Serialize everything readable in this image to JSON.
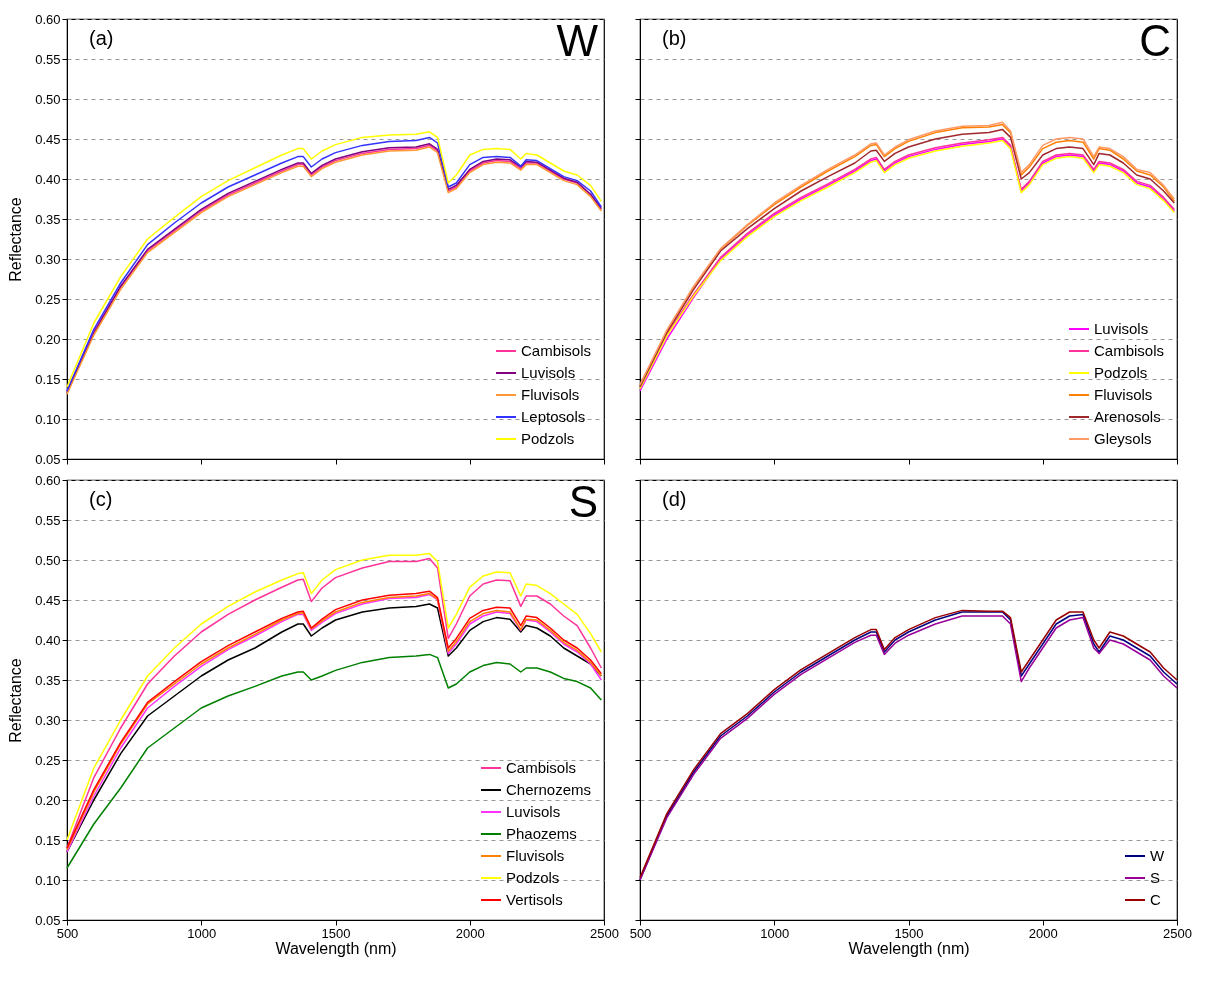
{
  "chart_data": [
    {
      "type": "line",
      "annotations": [
        "(a)",
        "W"
      ],
      "ylabel": "Reflectance",
      "xlim": [
        500,
        2500
      ],
      "ylim": [
        0.05,
        0.6
      ],
      "xticks": [
        500,
        1000,
        1500,
        2000,
        2500
      ],
      "yticks": [
        0.05,
        {
          "value": 0.1,
          "label": "0.10"
        },
        0.15,
        {
          "value": 0.2,
          "label": "0.20"
        },
        0.25,
        {
          "value": 0.3,
          "label": "0.30"
        },
        0.35,
        {
          "value": 0.4,
          "label": "0.40"
        },
        0.45,
        {
          "value": 0.5,
          "label": "0.50"
        },
        0.55,
        {
          "value": 0.6,
          "label": "0.60"
        }
      ],
      "tick_labels": "y",
      "grid": "y",
      "legend": "bottom right",
      "x": [
        500,
        600,
        700,
        800,
        900,
        1000,
        1100,
        1200,
        1300,
        1360,
        1380,
        1410,
        1450,
        1500,
        1600,
        1700,
        1800,
        1850,
        1880,
        1920,
        1950,
        2000,
        2050,
        2100,
        2150,
        2190,
        2210,
        2250,
        2300,
        2350,
        2400,
        2450,
        2490
      ],
      "series": [
        {
          "name": "Cambisols",
          "color": "#ff3399",
          "values": [
            0.135,
            0.21,
            0.265,
            0.31,
            0.335,
            0.36,
            0.38,
            0.395,
            0.41,
            0.418,
            0.418,
            0.405,
            0.415,
            0.423,
            0.432,
            0.437,
            0.438,
            0.442,
            0.435,
            0.385,
            0.39,
            0.41,
            0.42,
            0.423,
            0.422,
            0.413,
            0.42,
            0.42,
            0.41,
            0.4,
            0.395,
            0.38,
            0.362
          ]
        },
        {
          "name": "Luvisols",
          "color": "#800080",
          "values": [
            0.133,
            0.207,
            0.266,
            0.312,
            0.337,
            0.362,
            0.382,
            0.397,
            0.412,
            0.42,
            0.42,
            0.407,
            0.417,
            0.425,
            0.434,
            0.439,
            0.44,
            0.444,
            0.437,
            0.387,
            0.392,
            0.412,
            0.422,
            0.425,
            0.424,
            0.415,
            0.422,
            0.421,
            0.411,
            0.401,
            0.396,
            0.381,
            0.363
          ]
        },
        {
          "name": "Fluvisols",
          "color": "#ff9933",
          "values": [
            0.131,
            0.205,
            0.262,
            0.308,
            0.333,
            0.358,
            0.378,
            0.393,
            0.408,
            0.416,
            0.416,
            0.403,
            0.413,
            0.421,
            0.43,
            0.435,
            0.436,
            0.44,
            0.433,
            0.383,
            0.388,
            0.408,
            0.418,
            0.421,
            0.42,
            0.411,
            0.418,
            0.418,
            0.408,
            0.398,
            0.393,
            0.378,
            0.36
          ]
        },
        {
          "name": "Leptosols",
          "color": "#3333ff",
          "values": [
            0.135,
            0.212,
            0.27,
            0.318,
            0.345,
            0.37,
            0.39,
            0.405,
            0.42,
            0.428,
            0.428,
            0.415,
            0.425,
            0.433,
            0.442,
            0.447,
            0.448,
            0.452,
            0.445,
            0.39,
            0.395,
            0.418,
            0.427,
            0.428,
            0.427,
            0.416,
            0.424,
            0.423,
            0.413,
            0.403,
            0.398,
            0.385,
            0.365
          ]
        },
        {
          "name": "Podzols",
          "color": "#ffff00",
          "values": [
            0.14,
            0.22,
            0.278,
            0.325,
            0.352,
            0.378,
            0.398,
            0.414,
            0.43,
            0.438,
            0.438,
            0.425,
            0.435,
            0.443,
            0.452,
            0.455,
            0.456,
            0.459,
            0.452,
            0.395,
            0.405,
            0.43,
            0.437,
            0.438,
            0.437,
            0.425,
            0.432,
            0.43,
            0.42,
            0.41,
            0.405,
            0.392,
            0.372
          ]
        }
      ]
    },
    {
      "type": "line",
      "annotations": [
        "(b)",
        "C"
      ],
      "xlim": [
        500,
        2500
      ],
      "ylim": [
        0.05,
        0.6
      ],
      "xticks": [
        500,
        1000,
        1500,
        2000,
        2500
      ],
      "yticks": [
        0.05,
        0.1,
        0.15,
        0.2,
        0.25,
        0.3,
        0.35,
        0.4,
        0.45,
        0.5,
        0.55,
        0.6
      ],
      "tick_labels": false,
      "grid": "y",
      "legend": "bottom right",
      "x": [
        500,
        600,
        700,
        800,
        900,
        1000,
        1100,
        1200,
        1300,
        1360,
        1380,
        1410,
        1450,
        1500,
        1600,
        1700,
        1800,
        1850,
        1880,
        1920,
        1950,
        2000,
        2050,
        2100,
        2150,
        2190,
        2210,
        2250,
        2300,
        2350,
        2400,
        2450,
        2490
      ],
      "series": [
        {
          "name": "Luvisols",
          "color": "#ff00ff",
          "values": [
            0.135,
            0.2,
            0.252,
            0.3,
            0.33,
            0.355,
            0.375,
            0.392,
            0.41,
            0.423,
            0.425,
            0.41,
            0.42,
            0.428,
            0.437,
            0.443,
            0.447,
            0.45,
            0.44,
            0.385,
            0.395,
            0.42,
            0.428,
            0.43,
            0.428,
            0.41,
            0.42,
            0.418,
            0.41,
            0.395,
            0.39,
            0.375,
            0.36
          ]
        },
        {
          "name": "Cambisols",
          "color": "#ff3399",
          "values": [
            0.14,
            0.206,
            0.256,
            0.302,
            0.332,
            0.357,
            0.377,
            0.394,
            0.412,
            0.425,
            0.427,
            0.412,
            0.422,
            0.43,
            0.439,
            0.445,
            0.449,
            0.452,
            0.442,
            0.387,
            0.397,
            0.422,
            0.43,
            0.432,
            0.43,
            0.412,
            0.422,
            0.42,
            0.412,
            0.397,
            0.392,
            0.377,
            0.362
          ]
        },
        {
          "name": "Podzols",
          "color": "#ffff00",
          "values": [
            0.138,
            0.204,
            0.254,
            0.298,
            0.328,
            0.353,
            0.373,
            0.39,
            0.408,
            0.421,
            0.423,
            0.408,
            0.418,
            0.426,
            0.435,
            0.441,
            0.445,
            0.448,
            0.438,
            0.383,
            0.393,
            0.418,
            0.426,
            0.428,
            0.426,
            0.408,
            0.418,
            0.416,
            0.408,
            0.393,
            0.388,
            0.373,
            0.358
          ]
        },
        {
          "name": "Fluvisols",
          "color": "#ff8000",
          "values": [
            0.142,
            0.21,
            0.265,
            0.312,
            0.342,
            0.368,
            0.39,
            0.41,
            0.428,
            0.442,
            0.443,
            0.428,
            0.438,
            0.447,
            0.458,
            0.464,
            0.465,
            0.468,
            0.458,
            0.405,
            0.415,
            0.438,
            0.446,
            0.448,
            0.446,
            0.425,
            0.438,
            0.436,
            0.425,
            0.41,
            0.405,
            0.39,
            0.372
          ]
        },
        {
          "name": "Arenosols",
          "color": "#a0282d",
          "values": [
            0.14,
            0.208,
            0.262,
            0.31,
            0.338,
            0.363,
            0.385,
            0.403,
            0.42,
            0.435,
            0.436,
            0.422,
            0.432,
            0.44,
            0.45,
            0.456,
            0.458,
            0.462,
            0.452,
            0.4,
            0.408,
            0.43,
            0.438,
            0.44,
            0.438,
            0.418,
            0.432,
            0.43,
            0.42,
            0.405,
            0.4,
            0.385,
            0.37
          ]
        },
        {
          "name": "Gleysols",
          "color": "#ff9966",
          "values": [
            0.143,
            0.211,
            0.266,
            0.313,
            0.343,
            0.37,
            0.392,
            0.412,
            0.43,
            0.444,
            0.445,
            0.43,
            0.44,
            0.449,
            0.46,
            0.466,
            0.467,
            0.471,
            0.46,
            0.408,
            0.418,
            0.442,
            0.45,
            0.452,
            0.45,
            0.428,
            0.44,
            0.438,
            0.428,
            0.412,
            0.408,
            0.392,
            0.375
          ]
        }
      ]
    },
    {
      "type": "line",
      "annotations": [
        "(c)",
        "S"
      ],
      "xlabel": "Wavelength (nm)",
      "ylabel": "Reflectance",
      "xlim": [
        500,
        2500
      ],
      "ylim": [
        0.05,
        0.6
      ],
      "xticks": [
        500,
        1000,
        1500,
        2000,
        2500
      ],
      "yticks": [
        0.05,
        {
          "value": 0.1,
          "label": "0.10"
        },
        0.15,
        {
          "value": 0.2,
          "label": "0.20"
        },
        0.25,
        {
          "value": 0.3,
          "label": "0.30"
        },
        0.35,
        {
          "value": 0.4,
          "label": "0.40"
        },
        0.45,
        {
          "value": 0.5,
          "label": "0.50"
        },
        0.55,
        {
          "value": 0.6,
          "label": "0.60"
        }
      ],
      "grid": "y",
      "legend": "bottom right",
      "x": [
        500,
        600,
        700,
        800,
        900,
        1000,
        1100,
        1200,
        1300,
        1360,
        1380,
        1410,
        1450,
        1500,
        1600,
        1700,
        1800,
        1850,
        1880,
        1920,
        1950,
        2000,
        2050,
        2100,
        2150,
        2190,
        2210,
        2250,
        2300,
        2350,
        2400,
        2450,
        2490
      ],
      "series": [
        {
          "name": "Cambisols",
          "color": "#ff3399",
          "values": [
            0.14,
            0.228,
            0.29,
            0.345,
            0.38,
            0.41,
            0.432,
            0.45,
            0.466,
            0.475,
            0.476,
            0.448,
            0.465,
            0.478,
            0.49,
            0.498,
            0.498,
            0.502,
            0.49,
            0.402,
            0.42,
            0.455,
            0.47,
            0.475,
            0.474,
            0.442,
            0.455,
            0.455,
            0.445,
            0.43,
            0.418,
            0.39,
            0.365
          ]
        },
        {
          "name": "Chernozems",
          "color": "#000000",
          "values": [
            0.135,
            0.2,
            0.258,
            0.305,
            0.33,
            0.355,
            0.375,
            0.39,
            0.41,
            0.42,
            0.42,
            0.405,
            0.415,
            0.425,
            0.435,
            0.44,
            0.442,
            0.445,
            0.44,
            0.38,
            0.39,
            0.412,
            0.423,
            0.428,
            0.426,
            0.41,
            0.418,
            0.415,
            0.405,
            0.39,
            0.38,
            0.37,
            0.355
          ]
        },
        {
          "name": "Luvisols",
          "color": "#ff33ff",
          "values": [
            0.135,
            0.205,
            0.265,
            0.315,
            0.342,
            0.367,
            0.388,
            0.405,
            0.423,
            0.432,
            0.432,
            0.412,
            0.422,
            0.433,
            0.445,
            0.452,
            0.453,
            0.457,
            0.45,
            0.383,
            0.395,
            0.42,
            0.43,
            0.435,
            0.433,
            0.412,
            0.425,
            0.423,
            0.41,
            0.395,
            0.385,
            0.37,
            0.35
          ]
        },
        {
          "name": "Phaozems",
          "color": "#008000",
          "values": [
            0.115,
            0.17,
            0.215,
            0.265,
            0.29,
            0.315,
            0.33,
            0.342,
            0.355,
            0.36,
            0.36,
            0.35,
            0.355,
            0.362,
            0.372,
            0.378,
            0.38,
            0.382,
            0.378,
            0.34,
            0.345,
            0.36,
            0.368,
            0.372,
            0.37,
            0.36,
            0.365,
            0.365,
            0.36,
            0.352,
            0.348,
            0.34,
            0.325
          ]
        },
        {
          "name": "Fluvisols",
          "color": "#ff8000",
          "values": [
            0.138,
            0.21,
            0.27,
            0.32,
            0.345,
            0.37,
            0.39,
            0.407,
            0.425,
            0.433,
            0.434,
            0.414,
            0.424,
            0.435,
            0.447,
            0.453,
            0.455,
            0.458,
            0.451,
            0.386,
            0.398,
            0.423,
            0.433,
            0.437,
            0.435,
            0.413,
            0.426,
            0.425,
            0.412,
            0.397,
            0.387,
            0.372,
            0.355
          ]
        },
        {
          "name": "Podzols",
          "color": "#ffff00",
          "values": [
            0.15,
            0.24,
            0.3,
            0.355,
            0.39,
            0.42,
            0.442,
            0.46,
            0.475,
            0.483,
            0.484,
            0.458,
            0.475,
            0.488,
            0.5,
            0.506,
            0.506,
            0.508,
            0.498,
            0.415,
            0.432,
            0.466,
            0.48,
            0.485,
            0.484,
            0.455,
            0.47,
            0.468,
            0.458,
            0.445,
            0.432,
            0.408,
            0.385
          ]
        },
        {
          "name": "Vertisols",
          "color": "#ff0000",
          "values": [
            0.14,
            0.213,
            0.272,
            0.322,
            0.348,
            0.373,
            0.393,
            0.41,
            0.427,
            0.435,
            0.436,
            0.415,
            0.426,
            0.438,
            0.45,
            0.456,
            0.458,
            0.461,
            0.453,
            0.39,
            0.402,
            0.427,
            0.437,
            0.441,
            0.44,
            0.418,
            0.43,
            0.428,
            0.415,
            0.4,
            0.39,
            0.375,
            0.358
          ]
        }
      ]
    },
    {
      "type": "line",
      "annotations": [
        "(d)"
      ],
      "xlabel": "Wavelength (nm)",
      "xlim": [
        500,
        2500
      ],
      "ylim": [
        0.05,
        0.6
      ],
      "xticks": [
        500,
        1000,
        1500,
        2000,
        2500
      ],
      "yticks": [
        0.05,
        0.1,
        0.15,
        0.2,
        0.25,
        0.3,
        0.35,
        0.4,
        0.45,
        0.5,
        0.55,
        0.6
      ],
      "tick_labels": "x",
      "grid": "y",
      "legend": "bottom right",
      "x": [
        500,
        600,
        700,
        800,
        900,
        1000,
        1100,
        1200,
        1300,
        1360,
        1380,
        1410,
        1450,
        1500,
        1600,
        1700,
        1800,
        1850,
        1880,
        1920,
        1950,
        2000,
        2050,
        2100,
        2150,
        2190,
        2210,
        2250,
        2300,
        2350,
        2400,
        2450,
        2500
      ],
      "series": [
        {
          "name": "W",
          "color": "#000080",
          "values": [
            0.1,
            0.18,
            0.235,
            0.28,
            0.305,
            0.335,
            0.36,
            0.38,
            0.4,
            0.41,
            0.41,
            0.385,
            0.4,
            0.41,
            0.425,
            0.435,
            0.435,
            0.435,
            0.425,
            0.355,
            0.37,
            0.395,
            0.42,
            0.43,
            0.432,
            0.395,
            0.385,
            0.405,
            0.4,
            0.39,
            0.38,
            0.36,
            0.345
          ]
        },
        {
          "name": "S",
          "color": "#990099",
          "values": [
            0.1,
            0.178,
            0.232,
            0.277,
            0.302,
            0.332,
            0.357,
            0.377,
            0.397,
            0.406,
            0.406,
            0.382,
            0.396,
            0.406,
            0.42,
            0.43,
            0.43,
            0.43,
            0.42,
            0.348,
            0.365,
            0.39,
            0.415,
            0.425,
            0.428,
            0.39,
            0.383,
            0.4,
            0.395,
            0.385,
            0.375,
            0.355,
            0.34
          ]
        },
        {
          "name": "C",
          "color": "#990000",
          "values": [
            0.103,
            0.183,
            0.238,
            0.283,
            0.308,
            0.338,
            0.363,
            0.383,
            0.403,
            0.413,
            0.413,
            0.388,
            0.403,
            0.413,
            0.428,
            0.437,
            0.436,
            0.436,
            0.428,
            0.36,
            0.375,
            0.4,
            0.425,
            0.435,
            0.435,
            0.4,
            0.39,
            0.41,
            0.405,
            0.395,
            0.385,
            0.365,
            0.35
          ]
        }
      ]
    }
  ]
}
